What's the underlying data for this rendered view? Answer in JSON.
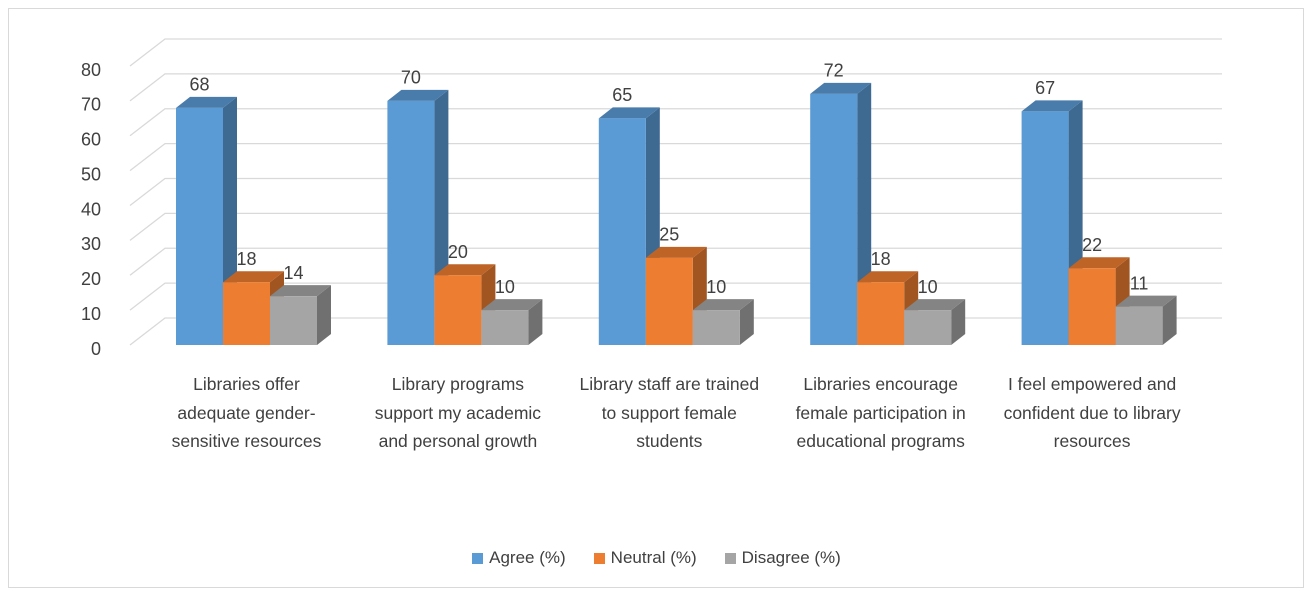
{
  "chart_data": {
    "type": "bar3d",
    "categories": [
      "Libraries offer adequate gender-sensitive resources",
      "Library programs support my academic and personal growth",
      "Library staff are trained to support female students",
      "Libraries encourage female participation in educational programs",
      "I feel empowered and confident due to library resources"
    ],
    "series": [
      {
        "name": "Agree (%)",
        "color": "#5b9bd5",
        "values": [
          68,
          70,
          65,
          72,
          67
        ]
      },
      {
        "name": "Neutral (%)",
        "color": "#ed7d31",
        "values": [
          18,
          20,
          25,
          18,
          22
        ]
      },
      {
        "name": "Disagree (%)",
        "color": "#a5a5a5",
        "values": [
          14,
          10,
          10,
          10,
          11
        ]
      }
    ],
    "ylim": [
      0,
      80
    ],
    "yticks": [
      0,
      10,
      20,
      30,
      40,
      50,
      60,
      70,
      80
    ],
    "grid": true,
    "legend": "bottom"
  }
}
